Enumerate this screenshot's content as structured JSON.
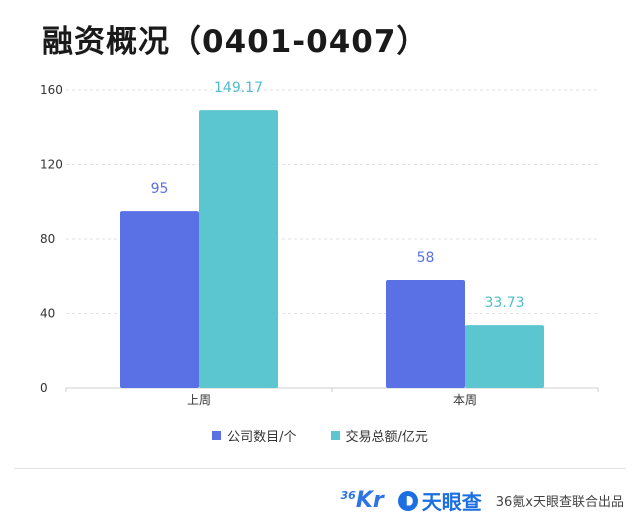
{
  "title": "融资概况（0401-0407）",
  "colors": {
    "companies": "#5a71e6",
    "amount": "#5bc6cf",
    "label_companies": "#5a71e6",
    "label_amount": "#4fbecb"
  },
  "chart_data": {
    "type": "bar",
    "title": "融资概况（0401-0407）",
    "categories": [
      "上周",
      "本周"
    ],
    "series": [
      {
        "name": "公司数目/个",
        "values": [
          95,
          58
        ],
        "labels": [
          "95",
          "58"
        ]
      },
      {
        "name": "交易总额/亿元",
        "values": [
          149.17,
          33.73
        ],
        "labels": [
          "149.17",
          "33.73"
        ]
      }
    ],
    "yticks": [
      "0",
      "40",
      "80",
      "120",
      "160"
    ],
    "ylim": [
      0,
      160
    ],
    "grid": true,
    "legend": "bottom"
  },
  "footer": {
    "logo_36kr_num": "36",
    "logo_36kr_text": "Kr",
    "logo_tyc": "天眼查",
    "credit": "36氪x天眼查联合出品"
  }
}
